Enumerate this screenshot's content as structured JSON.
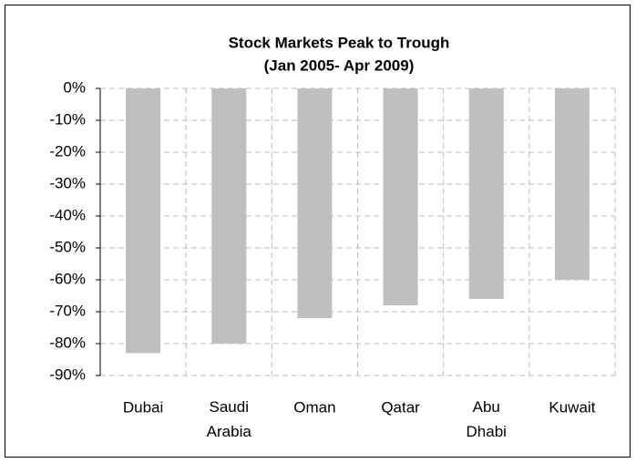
{
  "chart_data": {
    "type": "bar",
    "title": "Stock Markets Peak to Trough",
    "subtitle": "(Jan 2005- Apr 2009)",
    "categories": [
      "Dubai",
      "Saudi Arabia",
      "Oman",
      "Qatar",
      "Abu Dhabi",
      "Kuwait"
    ],
    "values": [
      -83,
      -80,
      -72,
      -68,
      -66,
      -60
    ],
    "color": "#bfbfbf",
    "ylim": [
      -90,
      0
    ],
    "yticks": [
      {
        "value": 0,
        "label": "0%"
      },
      {
        "value": -10,
        "label": "-10%"
      },
      {
        "value": -20,
        "label": "-20%"
      },
      {
        "value": -30,
        "label": "-30%"
      },
      {
        "value": -40,
        "label": "-40%"
      },
      {
        "value": -50,
        "label": "-50%"
      },
      {
        "value": -60,
        "label": "-60%"
      },
      {
        "value": -70,
        "label": "-70%"
      },
      {
        "value": -80,
        "label": "-80%"
      },
      {
        "value": -90,
        "label": "-90%"
      }
    ],
    "grid": true
  }
}
